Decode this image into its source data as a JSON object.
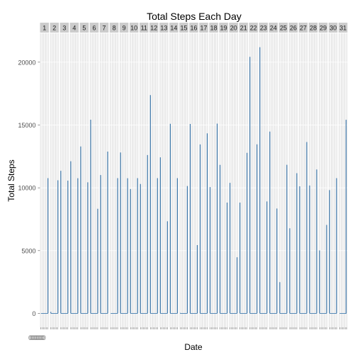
{
  "chart_data": {
    "type": "bar",
    "title": "Total Steps Each Day",
    "xlabel": "Date",
    "ylabel": "Total Steps",
    "facets": [
      "1",
      "2",
      "3",
      "4",
      "5",
      "6",
      "7",
      "8",
      "9",
      "10",
      "11",
      "12",
      "13",
      "14",
      "15",
      "16",
      "17",
      "18",
      "19",
      "20",
      "21",
      "22",
      "23",
      "24",
      "25",
      "26",
      "27",
      "28",
      "29",
      "30",
      "31"
    ],
    "series": [
      {
        "panels": [
          [
            0,
            10766
          ],
          [
            126,
            10600
          ],
          [
            11352,
            10571
          ],
          [
            12116,
            10765
          ],
          [
            13294,
            10439
          ],
          [
            15420,
            8334
          ],
          [
            11015,
            12883
          ],
          [
            0,
            10766
          ],
          [
            12811,
            10765
          ],
          [
            9900,
            10766
          ],
          [
            10304,
            12608
          ],
          [
            17382,
            10766
          ],
          [
            12426,
            7336
          ],
          [
            15098,
            10766
          ],
          [
            41,
            10139
          ],
          [
            15084,
            5441
          ],
          [
            13452,
            14339
          ],
          [
            10056,
            15110
          ],
          [
            11829,
            8821
          ],
          [
            10395,
            4472
          ],
          [
            8821,
            12787
          ],
          [
            20427,
            13460
          ],
          [
            21194,
            8918
          ],
          [
            14478,
            8355
          ],
          [
            2492,
            11834
          ],
          [
            6778,
            11162
          ],
          [
            10119,
            13646
          ],
          [
            10183,
            11458
          ],
          [
            5018,
            7047
          ],
          [
            9819,
            10766
          ],
          [
            15414
          ]
        ]
      }
    ],
    "ylim": [
      -1100,
      22300
    ],
    "y_ticks": [
      0,
      5000,
      10000,
      15000,
      20000
    ],
    "y_tick_labels": [
      "0",
      "5000",
      "10000",
      "15000",
      "20000"
    ],
    "x_tick_labels": [
      "0",
      "0",
      "0",
      "0",
      "0",
      "0",
      "0",
      "0",
      "0",
      "0",
      "0",
      "0"
    ],
    "grid": true,
    "panel_background": "#ebebeb",
    "strip_background": "#cccccc",
    "bar_color": "#2e6da4",
    "gridline_color": "#ffffff"
  }
}
